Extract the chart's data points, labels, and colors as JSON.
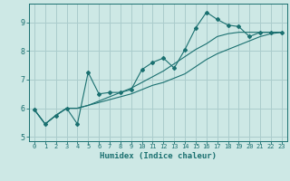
{
  "xlabel": "Humidex (Indice chaleur)",
  "xlim": [
    -0.5,
    23.5
  ],
  "ylim": [
    4.85,
    9.65
  ],
  "xticks": [
    0,
    1,
    2,
    3,
    4,
    5,
    6,
    7,
    8,
    9,
    10,
    11,
    12,
    13,
    14,
    15,
    16,
    17,
    18,
    19,
    20,
    21,
    22,
    23
  ],
  "yticks": [
    5,
    6,
    7,
    8,
    9
  ],
  "bg_color": "#cde8e5",
  "grid_color": "#aacccc",
  "line_color": "#1a7070",
  "line1_x": [
    0,
    1,
    2,
    3,
    4,
    5,
    6,
    7,
    8,
    9,
    10,
    11,
    12,
    13,
    14,
    15,
    16,
    17,
    18,
    19,
    20,
    21,
    22,
    23
  ],
  "line1_y": [
    5.95,
    5.45,
    5.75,
    6.0,
    5.45,
    7.25,
    6.5,
    6.55,
    6.55,
    6.65,
    7.35,
    7.6,
    7.75,
    7.4,
    8.05,
    8.8,
    9.35,
    9.1,
    8.9,
    8.85,
    8.5,
    8.65,
    8.65,
    8.65
  ],
  "line2_x": [
    0,
    1,
    2,
    3,
    4,
    5,
    6,
    7,
    8,
    9,
    10,
    11,
    12,
    13,
    14,
    15,
    16,
    17,
    18,
    19,
    20,
    21,
    22,
    23
  ],
  "line2_y": [
    5.95,
    5.45,
    5.75,
    6.0,
    6.0,
    6.1,
    6.2,
    6.3,
    6.4,
    6.5,
    6.65,
    6.8,
    6.9,
    7.05,
    7.2,
    7.45,
    7.7,
    7.9,
    8.05,
    8.2,
    8.35,
    8.5,
    8.6,
    8.65
  ],
  "line3_x": [
    0,
    1,
    2,
    3,
    4,
    5,
    6,
    7,
    8,
    9,
    10,
    11,
    12,
    13,
    14,
    15,
    16,
    17,
    18,
    19,
    20,
    21,
    22,
    23
  ],
  "line3_y": [
    5.95,
    5.45,
    5.75,
    6.0,
    6.0,
    6.1,
    6.25,
    6.4,
    6.55,
    6.7,
    6.9,
    7.1,
    7.3,
    7.55,
    7.8,
    8.05,
    8.25,
    8.5,
    8.6,
    8.65,
    8.65,
    8.65,
    8.65,
    8.65
  ],
  "xtick_fontsize": 5.0,
  "ytick_fontsize": 6.0,
  "xlabel_fontsize": 6.5
}
